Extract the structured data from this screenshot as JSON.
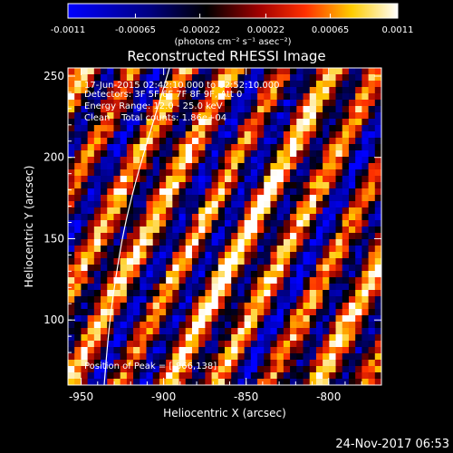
{
  "chart_data": {
    "type": "heatmap",
    "title": "Reconstructed RHESSI Image",
    "xlabel": "Heliocentric X (arcsec)",
    "ylabel": "Heliocentric Y (arcsec)",
    "xlim": [
      -958,
      -768
    ],
    "ylim": [
      60,
      255
    ],
    "x_ticks": [
      -950,
      -900,
      -850,
      -800
    ],
    "y_ticks": [
      100,
      150,
      200,
      250
    ],
    "x_tick_labels": [
      "-950",
      "-900",
      "-850",
      "-800"
    ],
    "y_tick_labels": [
      "100",
      "150",
      "200",
      "250"
    ],
    "colorbar": {
      "range": [
        -0.0011,
        0.0011
      ],
      "ticks": [
        -0.0011,
        -0.00065,
        -0.00022,
        0.00022,
        0.00065,
        0.0011
      ],
      "tick_labels": [
        "-0.0011",
        "-0.00065",
        "-0.00022",
        "0.00022",
        "0.00065",
        "0.0011"
      ],
      "unit_label": "(photons cm⁻² s⁻¹ asec⁻²)",
      "colormap": [
        "#0000ff",
        "#000000",
        "#ff0000",
        "#ffff00",
        "#ffffff"
      ]
    },
    "annotations": [
      "17-Jun-2015 02:42:10.000 to 02:52:10.000",
      "Detectors: 3F 5F 6F 7F 8F 9F, Att 0",
      "Energy Range: 12.0 - 25.0 keV",
      "Clean    Total counts: 1.86e+04",
      "Position of Peak = [-866,138]"
    ],
    "peak_position": [
      -866,
      138
    ],
    "limb_color": "#ffffff"
  },
  "footer": {
    "timestamp": "24-Nov-2017 06:53"
  }
}
